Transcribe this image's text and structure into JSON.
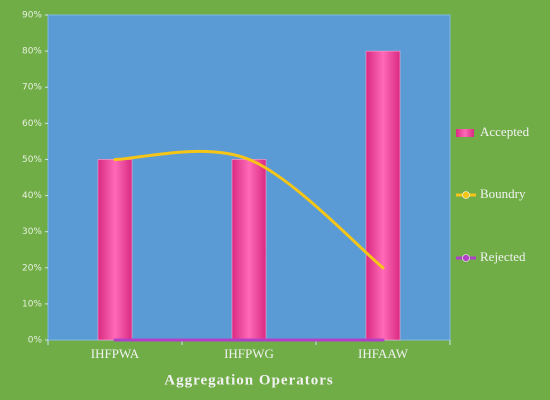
{
  "chart_data": {
    "type": "bar",
    "categories": [
      "IHFPWA",
      "IHFPWG",
      "IHFAAW"
    ],
    "series": [
      {
        "name": "Accepted",
        "type": "bar",
        "color": "#e8469a",
        "values": [
          50,
          50,
          80
        ]
      },
      {
        "name": "Boundry",
        "type": "line",
        "color": "#f5c518",
        "smooth": true,
        "values": [
          50,
          50,
          20
        ]
      },
      {
        "name": "Rejected",
        "type": "line",
        "color": "#b040c8",
        "smooth": true,
        "values": [
          0,
          0,
          0
        ]
      }
    ],
    "x_label": "Aggregation Operators",
    "ylim": [
      0,
      90
    ],
    "yticks": [
      {
        "value": 0,
        "label": "0%"
      },
      {
        "value": 10,
        "label": "10%"
      },
      {
        "value": 20,
        "label": "20%"
      },
      {
        "value": 30,
        "label": "30%"
      },
      {
        "value": 40,
        "label": "40%"
      },
      {
        "value": 50,
        "label": "50%"
      },
      {
        "value": 60,
        "label": "60%"
      },
      {
        "value": 70,
        "label": "70%"
      },
      {
        "value": 80,
        "label": "80%"
      },
      {
        "value": 90,
        "label": "90%"
      }
    ],
    "grid": false,
    "legend": "right"
  }
}
